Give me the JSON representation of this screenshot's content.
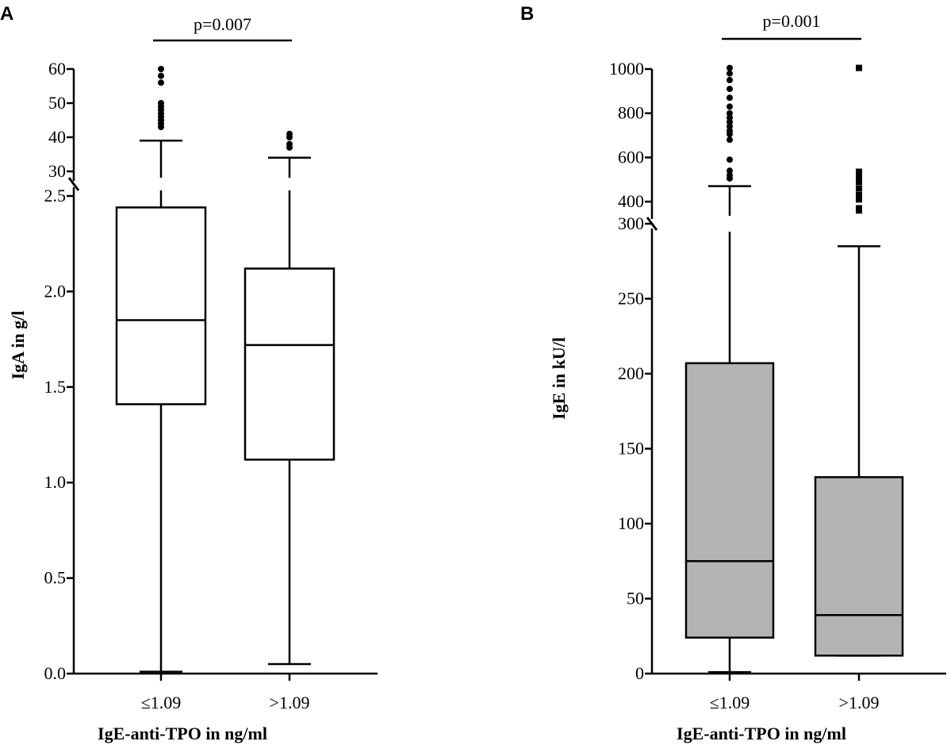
{
  "chart_data": [
    {
      "panel": "A",
      "type": "box",
      "xlabel": "IgE-anti-TPO in ng/ml",
      "ylabel": "IgA in g/l",
      "categories": [
        "≤1.09",
        ">1.09"
      ],
      "y_axis": {
        "broken": true,
        "lower_segment": {
          "range": [
            0,
            2.5
          ],
          "ticks": [
            0,
            0.5,
            1.0,
            1.5,
            2.0,
            2.5
          ],
          "tick_labels": [
            "0.0",
            "0.5",
            "1.0",
            "1.5",
            "2.0",
            "2.5"
          ]
        },
        "upper_segment": {
          "range": [
            30,
            60
          ],
          "ticks": [
            30,
            40,
            50,
            60
          ],
          "tick_labels": [
            "30",
            "40",
            "50",
            "60"
          ]
        }
      },
      "box_fill": "#ffffff",
      "outlier_marker": "circle",
      "boxes": [
        {
          "category": "≤1.09",
          "whisker_low": 0.01,
          "q1": 1.41,
          "median": 1.85,
          "q3": 2.44,
          "whisker_high": 39,
          "outliers": [
            43,
            44,
            45,
            46,
            47,
            48,
            49,
            50,
            56,
            58,
            60
          ]
        },
        {
          "category": ">1.09",
          "whisker_low": 0.05,
          "q1": 1.12,
          "median": 1.72,
          "q3": 2.12,
          "whisker_high": 34,
          "outliers": [
            37,
            38,
            40,
            41
          ]
        }
      ],
      "significance": {
        "label": "p=0.007",
        "between": [
          "≤1.09",
          ">1.09"
        ]
      }
    },
    {
      "panel": "B",
      "type": "box",
      "xlabel": "IgE-anti-TPO in ng/ml",
      "ylabel": "IgE in kU/l",
      "categories": [
        "≤1.09",
        ">1.09"
      ],
      "y_axis": {
        "broken": true,
        "lower_segment": {
          "range": [
            0,
            300
          ],
          "ticks": [
            0,
            50,
            100,
            150,
            200,
            250,
            300
          ],
          "tick_labels": [
            "0",
            "50",
            "100",
            "150",
            "200",
            "250",
            "300"
          ]
        },
        "upper_segment": {
          "range": [
            300,
            1000
          ],
          "ticks": [
            400,
            600,
            800,
            1000
          ],
          "tick_labels": [
            "400",
            "600",
            "800",
            "1000"
          ]
        }
      },
      "box_fill": "#b3b3b3",
      "outlier_marker_by_category": [
        "circle",
        "square"
      ],
      "boxes": [
        {
          "category": "≤1.09",
          "whisker_low": 1,
          "q1": 24,
          "median": 75,
          "q3": 207,
          "whisker_high": 470,
          "outliers": [
            505,
            520,
            540,
            590,
            680,
            705,
            720,
            740,
            760,
            780,
            800,
            830,
            870,
            910,
            950,
            980,
            1005
          ]
        },
        {
          "category": ">1.09",
          "whisker_low": 12,
          "q1": 12,
          "median": 39,
          "q3": 131,
          "whisker_high": 285,
          "outliers": [
            360,
            370,
            410,
            430,
            460,
            490,
            510,
            520,
            535,
            1005
          ]
        }
      ],
      "significance": {
        "label": "p=0.001",
        "between": [
          "≤1.09",
          ">1.09"
        ]
      }
    }
  ]
}
